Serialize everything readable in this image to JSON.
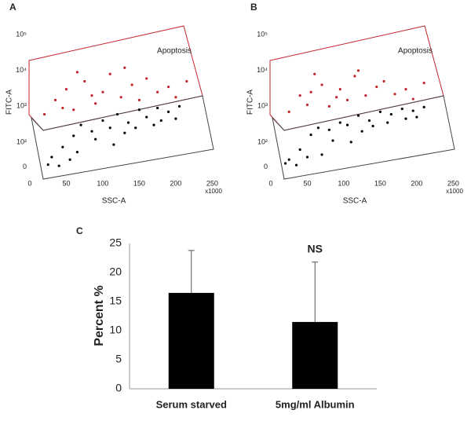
{
  "chart_data": [
    {
      "type": "scatter",
      "label": "A",
      "annotation": "Apoptosis",
      "x_label": "SSC-A",
      "y_label": "FITC-A",
      "x_unit_label": "x1000",
      "xlim": [
        0,
        255
      ],
      "xticks": [
        0,
        50,
        100,
        150,
        200,
        250
      ],
      "yscale": "biexponential",
      "ylim": [
        -29,
        160000
      ],
      "yticks": [
        0,
        {
          "value": 100,
          "label": "10²"
        },
        {
          "value": 1000,
          "label": "10³"
        },
        {
          "value": 10000,
          "label": "10⁴"
        },
        {
          "value": 100000,
          "label": "10⁵"
        }
      ],
      "series": [
        {
          "color": "#c0262b",
          "x": [
            20,
            35,
            50,
            60,
            75,
            90,
            100,
            110,
            125,
            140,
            150,
            160,
            175,
            190,
            200,
            215,
            65,
            130,
            45,
            85
          ],
          "y": [
            600,
            1500,
            3000,
            800,
            5000,
            1200,
            2500,
            8000,
            1800,
            4000,
            1500,
            6000,
            2500,
            3500,
            1800,
            5000,
            9000,
            12000,
            900,
            2000
          ]
        },
        {
          "color": "#000000",
          "x": [
            30,
            45,
            60,
            70,
            85,
            100,
            110,
            120,
            135,
            150,
            160,
            175,
            190,
            205,
            25,
            40,
            55,
            90,
            130,
            170,
            200,
            65,
            115,
            145,
            180
          ],
          "y": [
            40,
            80,
            150,
            300,
            200,
            400,
            250,
            600,
            350,
            800,
            500,
            900,
            700,
            1000,
            10,
            5,
            30,
            120,
            180,
            300,
            450,
            60,
            90,
            250,
            400
          ]
        }
      ]
    },
    {
      "type": "scatter",
      "label": "B",
      "annotation": "Apoptosis",
      "x_label": "SSC-A",
      "y_label": "FITC-A",
      "x_unit_label": "x1000",
      "xlim": [
        0,
        255
      ],
      "xticks": [
        0,
        50,
        100,
        150,
        200,
        250
      ],
      "yscale": "biexponential",
      "ylim": [
        -29,
        160000
      ],
      "yticks": [
        0,
        {
          "value": 100,
          "label": "10²"
        },
        {
          "value": 1000,
          "label": "10³"
        },
        {
          "value": 10000,
          "label": "10⁴"
        },
        {
          "value": 100000,
          "label": "10⁵"
        }
      ],
      "series": [
        {
          "color": "#c0262b",
          "x": [
            25,
            40,
            55,
            70,
            80,
            95,
            105,
            115,
            130,
            145,
            155,
            170,
            185,
            195,
            210,
            60,
            120,
            50,
            90
          ],
          "y": [
            700,
            2000,
            2500,
            4000,
            1000,
            3000,
            1500,
            7000,
            2000,
            3500,
            5000,
            2200,
            3000,
            1600,
            4500,
            8000,
            10000,
            1100,
            1800
          ]
        },
        {
          "color": "#000000",
          "x": [
            25,
            40,
            55,
            65,
            80,
            95,
            105,
            120,
            135,
            150,
            165,
            180,
            195,
            210,
            20,
            35,
            50,
            85,
            125,
            160,
            200,
            70,
            110,
            140,
            185
          ],
          "y": [
            30,
            70,
            160,
            250,
            220,
            350,
            300,
            550,
            400,
            700,
            600,
            850,
            750,
            950,
            15,
            8,
            40,
            110,
            200,
            350,
            500,
            50,
            100,
            280,
            450
          ]
        }
      ]
    },
    {
      "type": "bar",
      "label": "C",
      "annotation": "NS",
      "y_label": "Percent %",
      "categories": [
        "Serum starved",
        "5mg/ml Albumin"
      ],
      "values": [
        16.5,
        11.5
      ],
      "errors": [
        7.3,
        10.3
      ],
      "color": "#000000",
      "ylim": [
        0,
        25
      ],
      "yticks": [
        0,
        5,
        10,
        15,
        20,
        25
      ]
    }
  ]
}
